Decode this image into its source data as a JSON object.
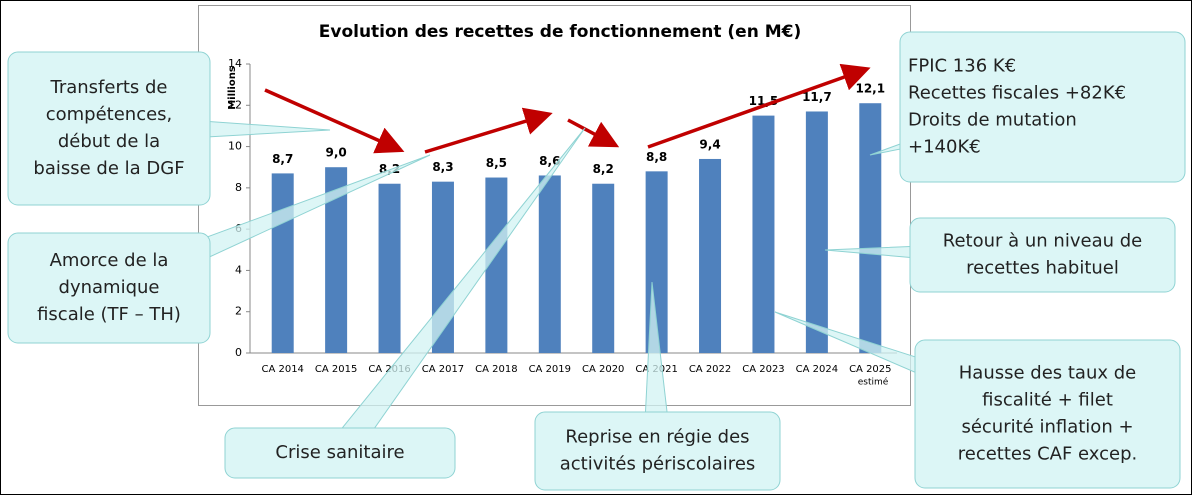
{
  "chart_data": {
    "type": "bar",
    "title": "Evolution des recettes de fonctionnement (en M€)",
    "y_label": "Millions",
    "categories": [
      [
        "CA 2014"
      ],
      [
        "CA 2015"
      ],
      [
        "CA 2016"
      ],
      [
        "CA 2017"
      ],
      [
        "CA 2018"
      ],
      [
        "CA 2019"
      ],
      [
        "CA 2020"
      ],
      [
        "CA 2021"
      ],
      [
        "CA 2022"
      ],
      [
        "CA 2023"
      ],
      [
        "CA 2024"
      ],
      [
        "CA 2025",
        "estimé"
      ]
    ],
    "values": [
      8.7,
      9.0,
      8.2,
      8.3,
      8.5,
      8.6,
      8.2,
      8.8,
      9.4,
      11.5,
      11.7,
      12.1
    ],
    "value_labels": [
      "8,7",
      "9,0",
      "8,2",
      "8,3",
      "8,5",
      "8,6",
      "8,2",
      "8,8",
      "9,4",
      "11,5",
      "11,7",
      "12,1"
    ],
    "color": "#4f81bd",
    "ylim": [
      0,
      14
    ],
    "yticks": [
      0,
      2,
      4,
      6,
      8,
      10,
      12,
      14
    ],
    "grid": false,
    "annotations": [
      [
        "Transferts de",
        "compétences,",
        "début de la",
        "baisse de la DGF"
      ],
      [
        "Amorce de la",
        "dynamique",
        "fiscale (TF – TH)"
      ],
      [
        "Crise sanitaire"
      ],
      [
        "Reprise en régie des",
        "activités périscolaires"
      ],
      [
        "FPIC 136 K€",
        "Recettes fiscales +82K€",
        "Droits de mutation",
        "+140K€"
      ],
      [
        "Retour à un niveau de",
        "recettes habituel"
      ],
      [
        "Hausse des taux de",
        "fiscalité + filet",
        "sécurité inflation +",
        "recettes CAF excep."
      ]
    ]
  }
}
